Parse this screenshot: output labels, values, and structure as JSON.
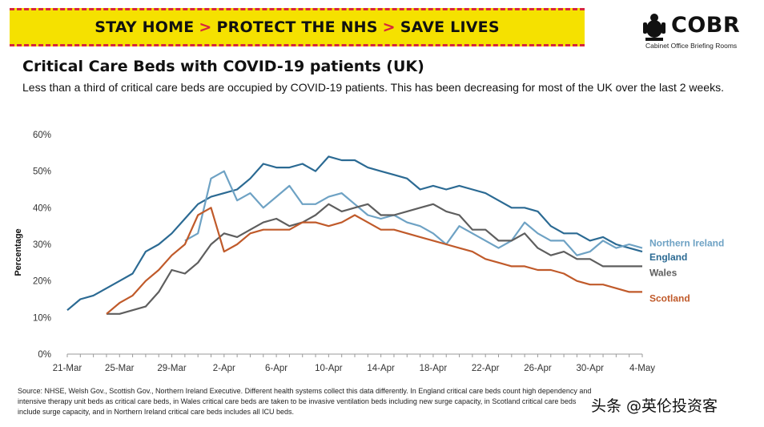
{
  "banner": {
    "part1": "STAY HOME",
    "part2": "PROTECT THE NHS",
    "part3": "SAVE LIVES",
    "arrow": ">"
  },
  "logo": {
    "title": "COBR",
    "subtitle": "Cabinet Office Briefing Rooms"
  },
  "colors": {
    "england": "#2b6a93",
    "northern_ireland": "#6ea2c4",
    "wales": "#5e5e5e",
    "scotland": "#c05a2a",
    "banner_yellow": "#f5e100",
    "banner_red": "#d7263d"
  },
  "chart_data": {
    "type": "line",
    "title": "Critical Care Beds with COVID-19 patients (UK)",
    "subtitle": "Less than a third of critical care beds are occupied by COVID-19 patients. This has been decreasing for most of the UK over the last 2 weeks.",
    "ylabel": "Percentage",
    "xlabel": "",
    "ylim": [
      0,
      60
    ],
    "yticks": [
      0,
      10,
      20,
      30,
      40,
      50,
      60
    ],
    "ytick_labels": [
      "0%",
      "10%",
      "20%",
      "30%",
      "40%",
      "50%",
      "60%"
    ],
    "x_start": 0,
    "x_end": 44,
    "xticks": [
      0,
      4,
      8,
      12,
      16,
      20,
      24,
      28,
      32,
      36,
      40,
      44
    ],
    "xtick_labels": [
      "21-Mar",
      "25-Mar",
      "29-Mar",
      "2-Apr",
      "6-Apr",
      "10-Apr",
      "14-Apr",
      "18-Apr",
      "22-Apr",
      "26-Apr",
      "30-Apr",
      "4-May"
    ],
    "series": [
      {
        "name": "England",
        "key": "england",
        "start": 0,
        "values": [
          12,
          15,
          16,
          18,
          20,
          22,
          28,
          30,
          33,
          37,
          41,
          43,
          44,
          45,
          48,
          52,
          51,
          51,
          52,
          50,
          54,
          53,
          53,
          51,
          50,
          49,
          48,
          45,
          46,
          45,
          46,
          45,
          44,
          42,
          40,
          40,
          39,
          35,
          33,
          33,
          31,
          32,
          30,
          29,
          28
        ]
      },
      {
        "name": "Northern Ireland",
        "key": "northern_ireland",
        "start": 9,
        "values": [
          31,
          33,
          48,
          50,
          42,
          44,
          40,
          43,
          46,
          41,
          41,
          43,
          44,
          41,
          38,
          37,
          38,
          36,
          35,
          33,
          30,
          35,
          33,
          31,
          29,
          31,
          36,
          33,
          31,
          31,
          27,
          28,
          31,
          29,
          30,
          29
        ]
      },
      {
        "name": "Wales",
        "key": "wales",
        "start": 3,
        "values": [
          11,
          11,
          12,
          13,
          17,
          23,
          22,
          25,
          30,
          33,
          32,
          34,
          36,
          37,
          35,
          36,
          38,
          41,
          39,
          40,
          41,
          38,
          38,
          39,
          40,
          41,
          39,
          38,
          34,
          34,
          31,
          31,
          33,
          29,
          27,
          28,
          26,
          26,
          24,
          24,
          24,
          24
        ]
      },
      {
        "name": "Scotland",
        "key": "scotland",
        "start": 3,
        "values": [
          11,
          14,
          16,
          20,
          23,
          27,
          30,
          38,
          40,
          28,
          30,
          33,
          34,
          34,
          34,
          36,
          36,
          35,
          36,
          38,
          36,
          34,
          34,
          33,
          32,
          31,
          30,
          29,
          28,
          26,
          25,
          24,
          24,
          23,
          23,
          22,
          20,
          19,
          19,
          18,
          17,
          17
        ]
      }
    ],
    "legend_placement": "right, beside line ends"
  },
  "source_text": "Source: NHSE, Welsh Gov., Scottish Gov., Northern Ireland Executive. Different health systems collect this data differently. In England critical care beds count high dependency and intensive therapy unit beds as critical care beds, in Wales critical care beds are taken to be invasive ventilation beds including new surge capacity, in Scotland critical care beds include surge capacity, and in Northern Ireland critical care beds includes all ICU beds.",
  "watermark": "头条 @英伦投资客"
}
